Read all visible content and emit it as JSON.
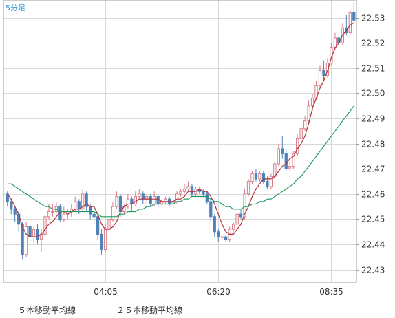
{
  "timeframe_label": "5分足",
  "colors": {
    "ma5": "#b0303a",
    "ma25": "#1f9a5a",
    "candle_up": "#d77b85",
    "candle_down": "#4f82b8",
    "grid": "#d8d8d8",
    "frame": "#9a9a9a"
  },
  "legend": [
    {
      "label": "５本移動平均線",
      "color": "#b0303a"
    },
    {
      "label": "２５本移動平均線",
      "color": "#1f9a5a"
    }
  ],
  "chart_data": {
    "type": "candlestick",
    "title": "",
    "ylim": [
      22.425,
      22.537
    ],
    "y_ticks": [
      "22.43",
      "22.44",
      "22.45",
      "22.46",
      "22.47",
      "22.48",
      "22.49",
      "22.50",
      "22.51",
      "22.52",
      "22.53"
    ],
    "x_ticks": [
      {
        "index": 26,
        "label": "04:05"
      },
      {
        "index": 56,
        "label": "06:20"
      },
      {
        "index": 86,
        "label": "08:35"
      }
    ],
    "grid": true,
    "ohlc": [
      [
        22.46,
        22.461,
        22.455,
        22.457
      ],
      [
        22.457,
        22.458,
        22.452,
        22.454
      ],
      [
        22.454,
        22.455,
        22.449,
        22.452
      ],
      [
        22.452,
        22.453,
        22.445,
        22.448
      ],
      [
        22.448,
        22.449,
        22.434,
        22.436
      ],
      [
        22.436,
        22.449,
        22.435,
        22.447
      ],
      [
        22.447,
        22.448,
        22.441,
        22.443
      ],
      [
        22.443,
        22.447,
        22.441,
        22.446
      ],
      [
        22.446,
        22.448,
        22.44,
        22.442
      ],
      [
        22.442,
        22.446,
        22.437,
        22.444
      ],
      [
        22.444,
        22.452,
        22.443,
        22.451
      ],
      [
        22.451,
        22.456,
        22.45,
        22.453
      ],
      [
        22.453,
        22.456,
        22.451,
        22.453
      ],
      [
        22.453,
        22.457,
        22.452,
        22.455
      ],
      [
        22.455,
        22.456,
        22.449,
        22.45
      ],
      [
        22.45,
        22.455,
        22.449,
        22.452
      ],
      [
        22.452,
        22.454,
        22.45,
        22.453
      ],
      [
        22.453,
        22.456,
        22.451,
        22.454
      ],
      [
        22.454,
        22.459,
        22.453,
        22.457
      ],
      [
        22.457,
        22.458,
        22.452,
        22.454
      ],
      [
        22.454,
        22.462,
        22.453,
        22.46
      ],
      [
        22.46,
        22.461,
        22.453,
        22.455
      ],
      [
        22.455,
        22.456,
        22.45,
        22.452
      ],
      [
        22.452,
        22.454,
        22.448,
        22.451
      ],
      [
        22.451,
        22.452,
        22.442,
        22.444
      ],
      [
        22.444,
        22.446,
        22.436,
        22.438
      ],
      [
        22.438,
        22.448,
        22.437,
        22.446
      ],
      [
        22.446,
        22.452,
        22.445,
        22.45
      ],
      [
        22.45,
        22.457,
        22.449,
        22.455
      ],
      [
        22.455,
        22.461,
        22.454,
        22.459
      ],
      [
        22.459,
        22.46,
        22.451,
        22.453
      ],
      [
        22.453,
        22.456,
        22.452,
        22.455
      ],
      [
        22.455,
        22.46,
        22.454,
        22.458
      ],
      [
        22.458,
        22.459,
        22.453,
        22.456
      ],
      [
        22.456,
        22.461,
        22.455,
        22.459
      ],
      [
        22.459,
        22.462,
        22.458,
        22.46
      ],
      [
        22.46,
        22.461,
        22.456,
        22.458
      ],
      [
        22.458,
        22.46,
        22.456,
        22.459
      ],
      [
        22.459,
        22.46,
        22.455,
        22.456
      ],
      [
        22.456,
        22.461,
        22.455,
        22.459
      ],
      [
        22.459,
        22.46,
        22.454,
        22.456
      ],
      [
        22.456,
        22.458,
        22.455,
        22.457
      ],
      [
        22.457,
        22.459,
        22.456,
        22.458
      ],
      [
        22.458,
        22.459,
        22.455,
        22.456
      ],
      [
        22.456,
        22.458,
        22.454,
        22.457
      ],
      [
        22.457,
        22.461,
        22.456,
        22.46
      ],
      [
        22.46,
        22.462,
        22.459,
        22.461
      ],
      [
        22.461,
        22.464,
        22.46,
        22.462
      ],
      [
        22.462,
        22.465,
        22.461,
        22.463
      ],
      [
        22.463,
        22.464,
        22.459,
        22.46
      ],
      [
        22.46,
        22.463,
        22.459,
        22.462
      ],
      [
        22.462,
        22.463,
        22.46,
        22.461
      ],
      [
        22.461,
        22.462,
        22.459,
        22.46
      ],
      [
        22.46,
        22.461,
        22.456,
        22.457
      ],
      [
        22.457,
        22.458,
        22.449,
        22.451
      ],
      [
        22.451,
        22.452,
        22.443,
        22.445
      ],
      [
        22.445,
        22.446,
        22.441,
        22.443
      ],
      [
        22.443,
        22.444,
        22.442,
        22.443
      ],
      [
        22.443,
        22.444,
        22.441,
        22.442
      ],
      [
        22.442,
        22.447,
        22.441,
        22.446
      ],
      [
        22.446,
        22.449,
        22.445,
        22.448
      ],
      [
        22.448,
        22.453,
        22.447,
        22.452
      ],
      [
        22.452,
        22.454,
        22.45,
        22.451
      ],
      [
        22.451,
        22.462,
        22.45,
        22.46
      ],
      [
        22.46,
        22.466,
        22.459,
        22.465
      ],
      [
        22.465,
        22.469,
        22.464,
        22.468
      ],
      [
        22.468,
        22.47,
        22.465,
        22.466
      ],
      [
        22.466,
        22.469,
        22.465,
        22.468
      ],
      [
        22.468,
        22.469,
        22.464,
        22.465
      ],
      [
        22.465,
        22.467,
        22.462,
        22.463
      ],
      [
        22.463,
        22.468,
        22.462,
        22.467
      ],
      [
        22.467,
        22.474,
        22.466,
        22.472
      ],
      [
        22.472,
        22.48,
        22.471,
        22.478
      ],
      [
        22.478,
        22.483,
        22.474,
        22.476
      ],
      [
        22.476,
        22.478,
        22.469,
        22.47
      ],
      [
        22.47,
        22.473,
        22.469,
        22.471
      ],
      [
        22.471,
        22.477,
        22.47,
        22.476
      ],
      [
        22.476,
        22.484,
        22.475,
        22.482
      ],
      [
        22.482,
        22.487,
        22.481,
        22.486
      ],
      [
        22.486,
        22.491,
        22.485,
        22.489
      ],
      [
        22.489,
        22.497,
        22.488,
        22.495
      ],
      [
        22.495,
        22.5,
        22.493,
        22.498
      ],
      [
        22.498,
        22.505,
        22.497,
        22.503
      ],
      [
        22.503,
        22.511,
        22.502,
        22.509
      ],
      [
        22.509,
        22.513,
        22.505,
        22.507
      ],
      [
        22.507,
        22.514,
        22.506,
        22.512
      ],
      [
        22.512,
        22.52,
        22.511,
        22.518
      ],
      [
        22.518,
        22.524,
        22.517,
        22.522
      ],
      [
        22.522,
        22.523,
        22.518,
        22.52
      ],
      [
        22.52,
        22.528,
        22.519,
        22.526
      ],
      [
        22.526,
        22.531,
        22.523,
        22.524
      ],
      [
        22.524,
        22.533,
        22.523,
        22.532
      ],
      [
        22.532,
        22.536,
        22.528,
        22.529
      ]
    ],
    "series": [
      {
        "name": "５本移動平均線",
        "values": [
          22.46,
          22.458,
          22.455,
          22.452,
          22.447,
          22.444,
          22.443,
          22.443,
          22.443,
          22.444,
          22.446,
          22.448,
          22.449,
          22.451,
          22.453,
          22.453,
          22.452,
          22.453,
          22.454,
          22.454,
          22.455,
          22.456,
          22.455,
          22.455,
          22.452,
          22.448,
          22.446,
          22.446,
          22.447,
          22.449,
          22.453,
          22.455,
          22.456,
          22.456,
          22.457,
          22.458,
          22.458,
          22.458,
          22.458,
          22.458,
          22.458,
          22.457,
          22.457,
          22.457,
          22.457,
          22.458,
          22.458,
          22.459,
          22.461,
          22.461,
          22.461,
          22.462,
          22.461,
          22.461,
          22.459,
          22.456,
          22.452,
          22.448,
          22.445,
          22.444,
          22.444,
          22.446,
          22.448,
          22.452,
          22.455,
          22.459,
          22.462,
          22.464,
          22.466,
          22.466,
          22.466,
          22.467,
          22.469,
          22.471,
          22.472,
          22.474,
          22.475,
          22.478,
          22.48,
          22.483,
          22.488,
          22.494,
          22.498,
          22.502,
          22.505,
          22.509,
          22.514,
          22.518,
          22.52,
          22.523,
          22.525,
          22.527,
          22.528
        ]
      },
      {
        "name": "２５本移動平均線",
        "values": [
          22.464,
          22.464,
          22.463,
          22.462,
          22.461,
          22.46,
          22.459,
          22.458,
          22.457,
          22.456,
          22.455,
          22.455,
          22.454,
          22.454,
          22.453,
          22.453,
          22.453,
          22.453,
          22.453,
          22.453,
          22.453,
          22.453,
          22.453,
          22.453,
          22.452,
          22.451,
          22.451,
          22.451,
          22.451,
          22.451,
          22.452,
          22.452,
          22.453,
          22.453,
          22.453,
          22.454,
          22.454,
          22.455,
          22.455,
          22.456,
          22.456,
          22.456,
          22.456,
          22.456,
          22.456,
          22.457,
          22.457,
          22.458,
          22.458,
          22.459,
          22.459,
          22.459,
          22.459,
          22.459,
          22.458,
          22.457,
          22.457,
          22.456,
          22.455,
          22.455,
          22.454,
          22.454,
          22.454,
          22.455,
          22.455,
          22.456,
          22.456,
          22.457,
          22.457,
          22.458,
          22.458,
          22.459,
          22.46,
          22.461,
          22.462,
          22.463,
          22.464,
          22.466,
          22.467,
          22.469,
          22.471,
          22.473,
          22.475,
          22.477,
          22.479,
          22.481,
          22.483,
          22.485,
          22.487,
          22.489,
          22.491,
          22.493,
          22.495
        ]
      }
    ]
  }
}
